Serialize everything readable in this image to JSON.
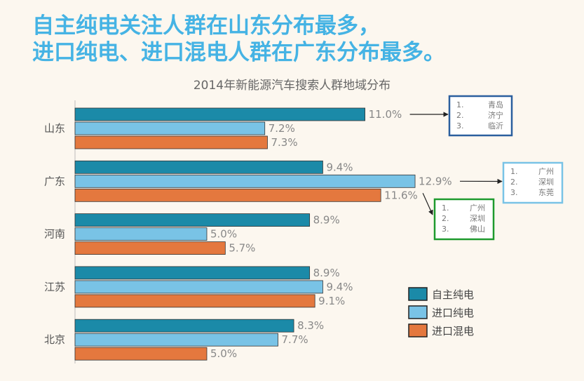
{
  "headline": {
    "line1": "自主纯电关注人群在山东分布最多，",
    "line2": "进口纯电、进口混电人群在广东分布最多。"
  },
  "chart_data": {
    "type": "bar",
    "orientation": "horizontal",
    "title": "2014年新能源汽车搜索人群地域分布",
    "categories": [
      "山东",
      "广东",
      "河南",
      "江苏",
      "北京"
    ],
    "series": [
      {
        "name": "自主纯电",
        "color": "#1b8aa8",
        "values": [
          11.0,
          9.4,
          8.9,
          8.9,
          8.3
        ],
        "labels": [
          "11.0%",
          "9.4%",
          "8.9%",
          "8.9%",
          "8.3%"
        ]
      },
      {
        "name": "进口纯电",
        "color": "#79c3e6",
        "values": [
          7.2,
          12.9,
          5.0,
          9.4,
          7.7
        ],
        "labels": [
          "7.2%",
          "12.9%",
          "5.0%",
          "9.4%",
          "7.7%"
        ]
      },
      {
        "name": "进口混电",
        "color": "#e4783e",
        "values": [
          7.3,
          11.6,
          5.7,
          9.1,
          5.0
        ],
        "labels": [
          "7.3%",
          "11.6%",
          "5.7%",
          "9.1%",
          "5.0%"
        ]
      }
    ],
    "xlim": [
      0,
      17.7
    ],
    "grid": false,
    "legend_position": "bottom-right",
    "annotations": [
      {
        "category": "山东",
        "series": "自主纯电",
        "border_color": "#2b5f9e",
        "items": [
          {
            "num": "1.",
            "city": "青岛"
          },
          {
            "num": "2.",
            "city": "济宁"
          },
          {
            "num": "3.",
            "city": "临沂"
          }
        ]
      },
      {
        "category": "广东",
        "series": "进口纯电",
        "border_color": "#79c3e6",
        "items": [
          {
            "num": "1.",
            "city": "广州"
          },
          {
            "num": "2.",
            "city": "深圳"
          },
          {
            "num": "3.",
            "city": "东莞"
          }
        ]
      },
      {
        "category": "广东",
        "series": "进口混电",
        "border_color": "#1e9a2e",
        "items": [
          {
            "num": "1.",
            "city": "广州"
          },
          {
            "num": "2.",
            "city": "深圳"
          },
          {
            "num": "3.",
            "city": "佛山"
          }
        ]
      }
    ]
  }
}
